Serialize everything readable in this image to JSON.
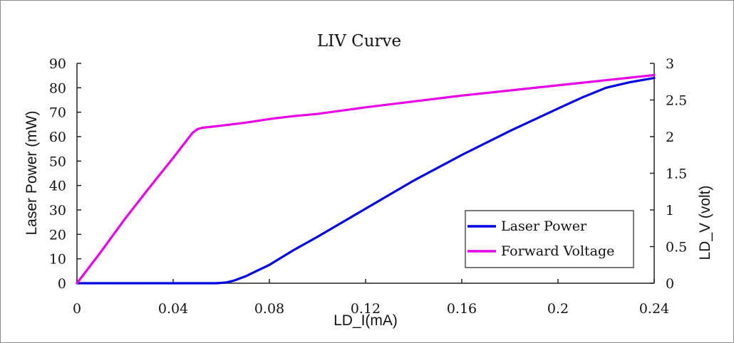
{
  "chart_data": {
    "type": "line",
    "title": "LIV Curve",
    "xlabel": "LD_I(mA)",
    "ylabel_left": "Laser Power (mW)",
    "ylabel_right": "LD_V (volt)",
    "xlim": [
      0,
      0.24
    ],
    "ylim_left": [
      0,
      90
    ],
    "ylim_right": [
      0,
      3
    ],
    "x_ticks": [
      0,
      0.04,
      0.08,
      0.12,
      0.16,
      0.2,
      0.24
    ],
    "x_tick_labels": [
      "0",
      "0.04",
      "0.08",
      "0.12",
      "0.16",
      "0.2",
      "0.24"
    ],
    "y_left_ticks": [
      0,
      10,
      20,
      30,
      40,
      50,
      60,
      70,
      80,
      90
    ],
    "y_left_tick_labels": [
      "0",
      "10",
      "20",
      "30",
      "40",
      "50",
      "60",
      "70",
      "80",
      "90"
    ],
    "y_right_ticks": [
      0,
      0.5,
      1,
      1.5,
      2,
      2.5,
      3
    ],
    "y_right_tick_labels": [
      "0",
      "0.5",
      "1",
      "1.5",
      "2",
      "2.5",
      "3"
    ],
    "grid": false,
    "legend_position": "bottom-right",
    "series": [
      {
        "name": "Laser Power",
        "axis": "left",
        "color": "#0000e0",
        "x": [
          0,
          0.05,
          0.058,
          0.062,
          0.065,
          0.07,
          0.08,
          0.09,
          0.1,
          0.12,
          0.14,
          0.16,
          0.18,
          0.2,
          0.21,
          0.22,
          0.23,
          0.24
        ],
        "y": [
          0,
          0,
          0,
          0.3,
          1,
          2.8,
          7.5,
          13.5,
          19,
          30.5,
          42,
          52.5,
          62.3,
          71.5,
          76,
          80,
          82.3,
          84
        ]
      },
      {
        "name": "Forward Voltage",
        "axis": "right",
        "color": "#e600e6",
        "x": [
          0,
          0.01,
          0.02,
          0.03,
          0.04,
          0.048,
          0.05,
          0.052,
          0.06,
          0.07,
          0.08,
          0.09,
          0.1,
          0.12,
          0.14,
          0.16,
          0.18,
          0.2,
          0.22,
          0.24
        ],
        "y": [
          0,
          0.43,
          0.88,
          1.3,
          1.71,
          2.05,
          2.1,
          2.12,
          2.15,
          2.19,
          2.24,
          2.28,
          2.31,
          2.4,
          2.48,
          2.56,
          2.63,
          2.7,
          2.77,
          2.84
        ]
      }
    ]
  }
}
